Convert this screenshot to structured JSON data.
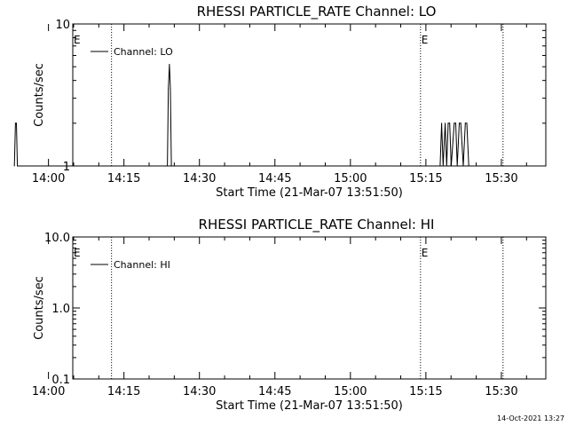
{
  "chart_data": [
    {
      "type": "line",
      "title": "RHESSI PARTICLE_RATE Channel: LO",
      "xlabel": "Start Time (21-Mar-07 13:51:50)",
      "ylabel": "Counts/sec",
      "yscale": "log",
      "ylim": [
        1,
        10
      ],
      "yticks": [
        {
          "value": 1,
          "label": "1"
        },
        {
          "value": 10,
          "label": "10"
        }
      ],
      "xlim_minutes": [
        13.0,
        107.0
      ],
      "xticks": [
        {
          "minutes": 8.17,
          "label": "14:00"
        },
        {
          "minutes": 23.17,
          "label": "14:15"
        },
        {
          "minutes": 38.17,
          "label": "14:30"
        },
        {
          "minutes": 53.17,
          "label": "14:45"
        },
        {
          "minutes": 68.17,
          "label": "15:00"
        },
        {
          "minutes": 83.17,
          "label": "15:15"
        },
        {
          "minutes": 98.17,
          "label": "15:30"
        }
      ],
      "event_markers": [
        {
          "minutes": 20.7,
          "label": "",
          "style": "dotted"
        },
        {
          "minutes": 82.1,
          "label": "E",
          "style": "dotted"
        },
        {
          "minutes": 98.5,
          "label": "",
          "style": "dotted"
        }
      ],
      "left_flag": "E",
      "legend": {
        "label": "Channel: LO",
        "position": "top-left"
      },
      "series": [
        {
          "name": "Channel: LO",
          "x": [
            1.4,
            1.6,
            1.8,
            2.0,
            2.2,
            31.8,
            32.0,
            32.2,
            32.4,
            32.6,
            86.0,
            86.3,
            86.6,
            87.0,
            87.3,
            87.6,
            87.9,
            88.2,
            88.8,
            89.1,
            89.4,
            89.8,
            90.1,
            90.6,
            91.0,
            91.3,
            91.7
          ],
          "y": [
            1,
            2,
            2,
            1,
            1,
            1,
            3.5,
            5.2,
            3.5,
            1,
            1,
            2,
            1,
            2,
            1,
            2,
            2,
            1,
            2,
            2,
            1,
            2,
            2,
            1,
            2,
            2,
            1
          ]
        }
      ]
    },
    {
      "type": "line",
      "title": "RHESSI PARTICLE_RATE Channel: HI",
      "xlabel": "Start Time (21-Mar-07 13:51:50)",
      "ylabel": "Counts/sec",
      "yscale": "log",
      "ylim": [
        0.1,
        10
      ],
      "yticks": [
        {
          "value": 0.1,
          "label": "0.1"
        },
        {
          "value": 1,
          "label": "1.0"
        },
        {
          "value": 10,
          "label": "10.0"
        }
      ],
      "xlim_minutes": [
        13.0,
        107.0
      ],
      "xticks": [
        {
          "minutes": 8.17,
          "label": "14:00"
        },
        {
          "minutes": 23.17,
          "label": "14:15"
        },
        {
          "minutes": 38.17,
          "label": "14:30"
        },
        {
          "minutes": 53.17,
          "label": "14:45"
        },
        {
          "minutes": 68.17,
          "label": "15:00"
        },
        {
          "minutes": 83.17,
          "label": "15:15"
        },
        {
          "minutes": 98.17,
          "label": "15:30"
        }
      ],
      "event_markers": [
        {
          "minutes": 20.7,
          "label": "",
          "style": "dotted"
        },
        {
          "minutes": 82.1,
          "label": "E",
          "style": "dotted"
        },
        {
          "minutes": 98.5,
          "label": "",
          "style": "dotted"
        }
      ],
      "left_flag": "E",
      "legend": {
        "label": "Channel: HI",
        "position": "top-left"
      },
      "series": [
        {
          "name": "Channel: HI",
          "x": [],
          "y": []
        }
      ]
    }
  ],
  "footer": {
    "timestamp": "14-Oct-2021 13:27"
  }
}
